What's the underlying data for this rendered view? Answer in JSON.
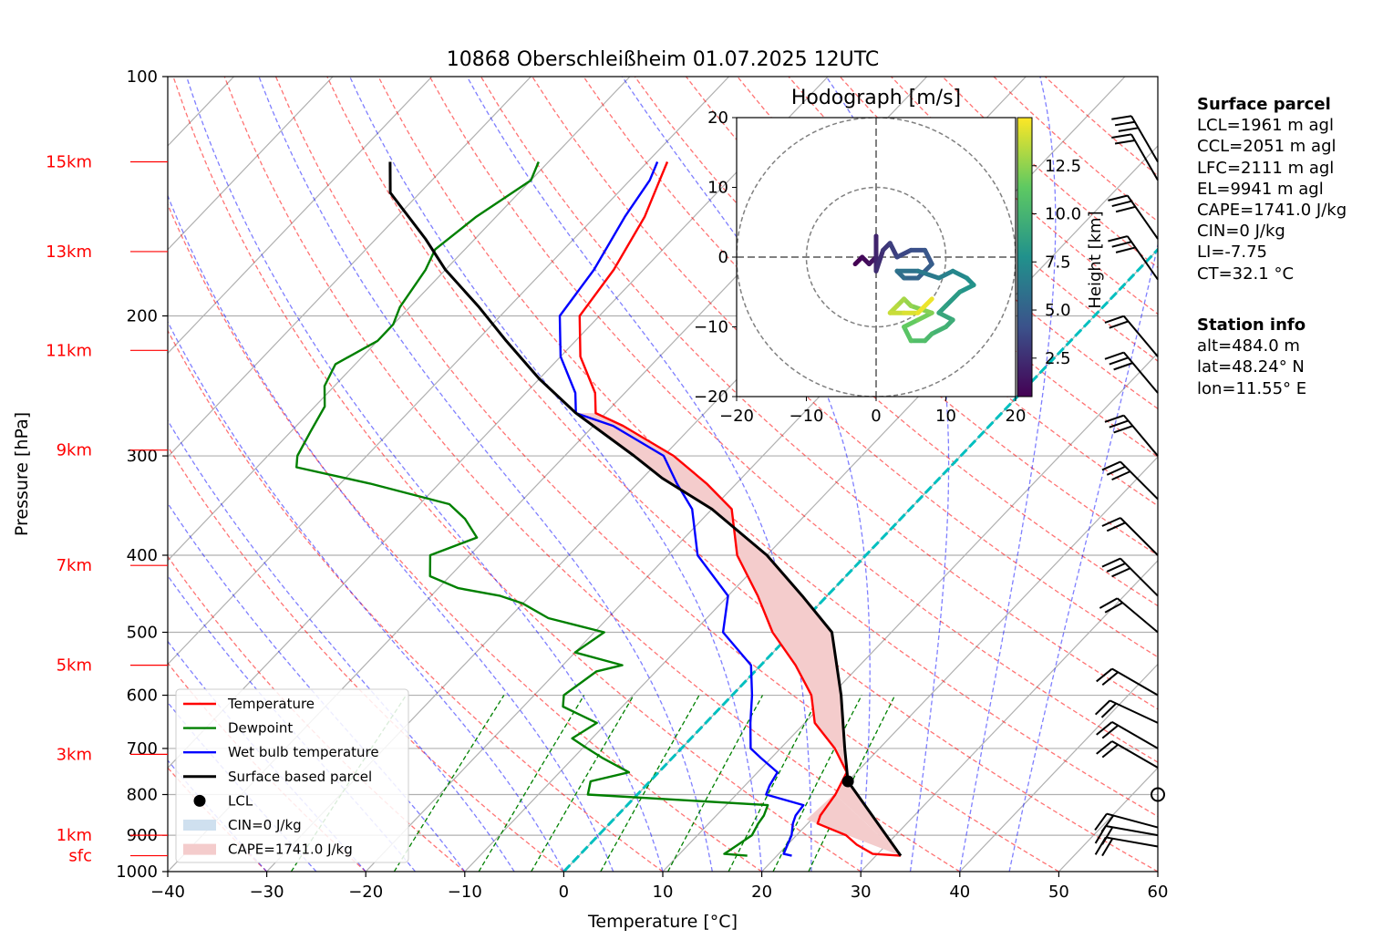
{
  "chart_data": {
    "type": "skew-t",
    "title": "10868 Oberschleißheim 01.07.2025 12UTC",
    "xlabel": "Temperature [°C]",
    "ylabel": "Pressure [hPa]",
    "xlim": [
      -40,
      60
    ],
    "ylim": [
      1000,
      100
    ],
    "y_scale": "log",
    "x_ticks": [
      "−40",
      "−30",
      "−20",
      "−10",
      "0",
      "10",
      "20",
      "30",
      "40",
      "50",
      "60"
    ],
    "y_ticks": [
      "100",
      "200",
      "300",
      "400",
      "500",
      "600",
      "700",
      "800",
      "900",
      "1000"
    ],
    "height_labels": [
      {
        "label": "15km",
        "p": 128
      },
      {
        "label": "13km",
        "p": 166
      },
      {
        "label": "11km",
        "p": 221
      },
      {
        "label": "9km",
        "p": 295
      },
      {
        "label": "7km",
        "p": 412
      },
      {
        "label": "5km",
        "p": 550
      },
      {
        "label": "3km",
        "p": 712
      },
      {
        "label": "1km",
        "p": 900
      },
      {
        "label": "sfc",
        "p": 955
      }
    ],
    "series": [
      {
        "name": "Temperature",
        "color": "#ff0000",
        "points": [
          [
            32.5,
            955
          ],
          [
            29.5,
            950
          ],
          [
            27,
            925
          ],
          [
            25,
            900
          ],
          [
            21,
            870
          ],
          [
            20.5,
            850
          ],
          [
            20,
            800
          ],
          [
            19,
            750
          ],
          [
            15.5,
            700
          ],
          [
            11,
            650
          ],
          [
            8,
            600
          ],
          [
            3.5,
            550
          ],
          [
            -2,
            500
          ],
          [
            -7,
            450
          ],
          [
            -13,
            400
          ],
          [
            -18,
            350
          ],
          [
            -23,
            325
          ],
          [
            -29,
            300
          ],
          [
            -37,
            275
          ],
          [
            -41,
            265
          ],
          [
            -43,
            250
          ],
          [
            -48,
            225
          ],
          [
            -52,
            200
          ],
          [
            -53,
            175
          ],
          [
            -55,
            150
          ],
          [
            -57,
            135
          ],
          [
            -58,
            128
          ]
        ]
      },
      {
        "name": "Dewpoint",
        "color": "#008000",
        "points": [
          [
            17,
            955
          ],
          [
            14.5,
            950
          ],
          [
            15,
            925
          ],
          [
            15.5,
            900
          ],
          [
            15,
            870
          ],
          [
            14.8,
            850
          ],
          [
            14.2,
            825
          ],
          [
            -5,
            800
          ],
          [
            -6,
            770
          ],
          [
            -3,
            750
          ],
          [
            -7,
            720
          ],
          [
            -9.5,
            700
          ],
          [
            -12,
            680
          ],
          [
            -11,
            650
          ],
          [
            -16,
            620
          ],
          [
            -17,
            600
          ],
          [
            -16,
            560
          ],
          [
            -14,
            550
          ],
          [
            -20,
            530
          ],
          [
            -19,
            500
          ],
          [
            -26,
            480
          ],
          [
            -30,
            460
          ],
          [
            -33,
            450
          ],
          [
            -38,
            440
          ],
          [
            -42,
            425
          ],
          [
            -44,
            400
          ],
          [
            -41,
            380
          ],
          [
            -44,
            360
          ],
          [
            -47,
            345
          ],
          [
            -57,
            325
          ],
          [
            -66,
            310
          ],
          [
            -67,
            300
          ],
          [
            -68,
            280
          ],
          [
            -69,
            260
          ],
          [
            -71,
            245
          ],
          [
            -72,
            230
          ],
          [
            -70,
            215
          ],
          [
            -70,
            205
          ],
          [
            -71,
            195
          ],
          [
            -72,
            175
          ],
          [
            -73,
            165
          ],
          [
            -72,
            150
          ],
          [
            -70,
            135
          ],
          [
            -71,
            128
          ]
        ]
      },
      {
        "name": "Wet bulb temperature",
        "color": "#0000ff",
        "points": [
          [
            21.5,
            955
          ],
          [
            20.5,
            950
          ],
          [
            20,
            925
          ],
          [
            19.5,
            900
          ],
          [
            18.5,
            870
          ],
          [
            18,
            850
          ],
          [
            17.8,
            825
          ],
          [
            13,
            800
          ],
          [
            12.5,
            780
          ],
          [
            12,
            750
          ],
          [
            9,
            720
          ],
          [
            7,
            700
          ],
          [
            4.5,
            650
          ],
          [
            2,
            600
          ],
          [
            -1,
            550
          ],
          [
            -7,
            500
          ],
          [
            -10,
            450
          ],
          [
            -17,
            400
          ],
          [
            -22,
            350
          ],
          [
            -26,
            325
          ],
          [
            -30,
            300
          ],
          [
            -38,
            275
          ],
          [
            -43,
            265
          ],
          [
            -45,
            250
          ],
          [
            -50,
            225
          ],
          [
            -54,
            200
          ],
          [
            -55,
            175
          ],
          [
            -57,
            150
          ],
          [
            -58,
            135
          ],
          [
            -59,
            128
          ]
        ]
      },
      {
        "name": "Surface based parcel",
        "color": "#000000",
        "points": [
          [
            32.5,
            955
          ],
          [
            20,
            770
          ],
          [
            16.5,
            700
          ],
          [
            11,
            600
          ],
          [
            4,
            500
          ],
          [
            -2.5,
            450
          ],
          [
            -10,
            400
          ],
          [
            -20,
            350
          ],
          [
            -28,
            320
          ],
          [
            -33,
            300
          ],
          [
            -43,
            265
          ],
          [
            -50,
            240
          ],
          [
            -57,
            215
          ],
          [
            -63,
            195
          ],
          [
            -70,
            175
          ],
          [
            -75,
            160
          ],
          [
            -83,
            140
          ],
          [
            -86,
            128
          ]
        ]
      }
    ],
    "lcl": {
      "t": 20,
      "p": 770,
      "label": "LCL"
    },
    "legend": {
      "position": "lower-left",
      "entries": [
        "Temperature",
        "Dewpoint",
        "Wet bulb temperature",
        "Surface based parcel",
        "LCL",
        "CIN=0 J/kg",
        "CAPE=1741.0 J/kg"
      ]
    },
    "wind_profile": {
      "calm_at_p": 800
    },
    "hodograph": {
      "title": "Hodograph [m/s]",
      "xlim": [
        -20,
        20
      ],
      "ylim": [
        -20,
        20
      ],
      "ticks": [
        "−20",
        "−10",
        "0",
        "10",
        "20"
      ],
      "colorbar_label": "Height [km]",
      "colorbar_ticks": [
        "2.5",
        "5.0",
        "7.5",
        "10.0",
        "12.5"
      ],
      "colormap": "viridis",
      "points": [
        [
          -3,
          -1
        ],
        [
          -2,
          0
        ],
        [
          -1,
          -1
        ],
        [
          0,
          0
        ],
        [
          0,
          3
        ],
        [
          0,
          -2
        ],
        [
          1,
          1
        ],
        [
          2,
          2
        ],
        [
          3,
          0
        ],
        [
          5,
          1
        ],
        [
          7,
          1
        ],
        [
          8,
          -1
        ],
        [
          6,
          -3
        ],
        [
          4,
          -3
        ],
        [
          3,
          -2
        ],
        [
          6,
          -2
        ],
        [
          9,
          -3
        ],
        [
          11,
          -2
        ],
        [
          13,
          -3
        ],
        [
          14,
          -4
        ],
        [
          12,
          -5
        ],
        [
          10,
          -7
        ],
        [
          9,
          -8
        ],
        [
          11,
          -9
        ],
        [
          10,
          -10
        ],
        [
          8,
          -11
        ],
        [
          7,
          -12
        ],
        [
          5,
          -12
        ],
        [
          4,
          -10
        ],
        [
          6,
          -9
        ],
        [
          8,
          -8
        ],
        [
          5,
          -7
        ],
        [
          4,
          -6
        ],
        [
          3,
          -7
        ],
        [
          2,
          -8
        ],
        [
          4,
          -8
        ],
        [
          6,
          -8
        ],
        [
          8,
          -6
        ]
      ]
    }
  },
  "info": {
    "surface_title": "Surface parcel",
    "lcl": "LCL=1961 m agl",
    "ccl": "CCL=2051 m agl",
    "lfc": "LFC=2111 m agl",
    "el": "EL=9941 m agl",
    "cape": "CAPE=1741.0 J/kg",
    "cin": "CIN=0 J/kg",
    "li": "LI=-7.75",
    "ct": "CT=32.1 °C",
    "station_title": "Station info",
    "alt": "alt=484.0 m",
    "lat": "lat=48.24° N",
    "lon": "lon=11.55° E"
  }
}
